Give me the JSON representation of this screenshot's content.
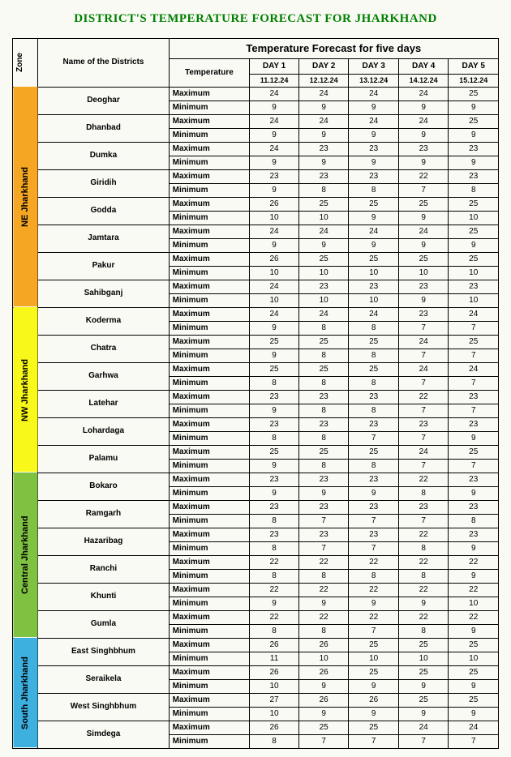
{
  "title": "DISTRICT'S TEMPERATURE FORECAST FOR JHARKHAND",
  "headers": {
    "zone": "Zone",
    "name": "Name of the Districts",
    "temp": "Temperature",
    "forecast": "Temperature Forecast for five days",
    "day1": "DAY 1",
    "day2": "DAY 2",
    "day3": "DAY 3",
    "day4": "DAY 4",
    "day5": "DAY 5"
  },
  "dates": [
    "11.12.24",
    "12.12.24",
    "13.12.24",
    "14.12.24",
    "15.12.24"
  ],
  "labels": {
    "max": "Maximum",
    "min": "Minimum"
  },
  "zones": [
    {
      "name": "NE Jharkhand",
      "color": "#f5a623",
      "districts": [
        {
          "name": "Deoghar",
          "max": [
            24,
            24,
            24,
            24,
            25
          ],
          "min": [
            9,
            9,
            9,
            9,
            9
          ]
        },
        {
          "name": "Dhanbad",
          "max": [
            24,
            24,
            24,
            24,
            25
          ],
          "min": [
            9,
            9,
            9,
            9,
            9
          ]
        },
        {
          "name": "Dumka",
          "max": [
            24,
            23,
            23,
            23,
            23
          ],
          "min": [
            9,
            9,
            9,
            9,
            9
          ]
        },
        {
          "name": "Giridih",
          "max": [
            23,
            23,
            23,
            22,
            23
          ],
          "min": [
            9,
            8,
            8,
            7,
            8
          ]
        },
        {
          "name": "Godda",
          "max": [
            26,
            25,
            25,
            25,
            25
          ],
          "min": [
            10,
            10,
            9,
            9,
            10
          ]
        },
        {
          "name": "Jamtara",
          "max": [
            24,
            24,
            24,
            24,
            25
          ],
          "min": [
            9,
            9,
            9,
            9,
            9
          ]
        },
        {
          "name": "Pakur",
          "max": [
            26,
            25,
            25,
            25,
            25
          ],
          "min": [
            10,
            10,
            10,
            10,
            10
          ]
        },
        {
          "name": "Sahibganj",
          "max": [
            24,
            23,
            23,
            23,
            23
          ],
          "min": [
            10,
            10,
            10,
            9,
            10
          ]
        }
      ]
    },
    {
      "name": "NW Jharkhand",
      "color": "#f8f81a",
      "districts": [
        {
          "name": "Koderma",
          "max": [
            24,
            24,
            24,
            23,
            24
          ],
          "min": [
            9,
            8,
            8,
            7,
            7
          ]
        },
        {
          "name": "Chatra",
          "max": [
            25,
            25,
            25,
            24,
            25
          ],
          "min": [
            9,
            8,
            8,
            7,
            7
          ]
        },
        {
          "name": "Garhwa",
          "max": [
            25,
            25,
            25,
            24,
            24
          ],
          "min": [
            8,
            8,
            8,
            7,
            7
          ]
        },
        {
          "name": "Latehar",
          "max": [
            23,
            23,
            23,
            22,
            23
          ],
          "min": [
            9,
            8,
            8,
            7,
            7
          ]
        },
        {
          "name": "Lohardaga",
          "max": [
            23,
            23,
            23,
            23,
            23
          ],
          "min": [
            8,
            8,
            7,
            7,
            9
          ]
        },
        {
          "name": "Palamu",
          "max": [
            25,
            25,
            25,
            24,
            25
          ],
          "min": [
            9,
            8,
            8,
            7,
            7
          ]
        }
      ]
    },
    {
      "name": "Central Jharkhand",
      "color": "#7fc241",
      "districts": [
        {
          "name": "Bokaro",
          "max": [
            23,
            23,
            23,
            22,
            23
          ],
          "min": [
            9,
            9,
            9,
            8,
            9
          ]
        },
        {
          "name": "Ramgarh",
          "max": [
            23,
            23,
            23,
            23,
            23
          ],
          "min": [
            8,
            7,
            7,
            7,
            8
          ]
        },
        {
          "name": "Hazaribag",
          "max": [
            23,
            23,
            23,
            22,
            23
          ],
          "min": [
            8,
            7,
            7,
            8,
            9
          ]
        },
        {
          "name": "Ranchi",
          "max": [
            22,
            22,
            22,
            22,
            22
          ],
          "min": [
            8,
            8,
            8,
            8,
            9
          ]
        },
        {
          "name": "Khunti",
          "max": [
            22,
            22,
            22,
            22,
            22
          ],
          "min": [
            9,
            9,
            9,
            9,
            10
          ]
        },
        {
          "name": "Gumla",
          "max": [
            22,
            22,
            22,
            22,
            22
          ],
          "min": [
            8,
            8,
            7,
            8,
            9
          ]
        }
      ]
    },
    {
      "name": "South Jharkhand",
      "color": "#3eb0e0",
      "districts": [
        {
          "name": "East Singhbhum",
          "max": [
            26,
            26,
            25,
            25,
            25
          ],
          "min": [
            11,
            10,
            10,
            10,
            10
          ]
        },
        {
          "name": "Seraikela",
          "max": [
            26,
            26,
            25,
            25,
            25
          ],
          "min": [
            10,
            9,
            9,
            9,
            9
          ]
        },
        {
          "name": "West Singhbhum",
          "max": [
            27,
            26,
            26,
            25,
            25
          ],
          "min": [
            10,
            9,
            9,
            9,
            9
          ]
        },
        {
          "name": "Simdega",
          "max": [
            26,
            25,
            25,
            24,
            24
          ],
          "min": [
            8,
            7,
            7,
            7,
            7
          ]
        }
      ]
    }
  ]
}
